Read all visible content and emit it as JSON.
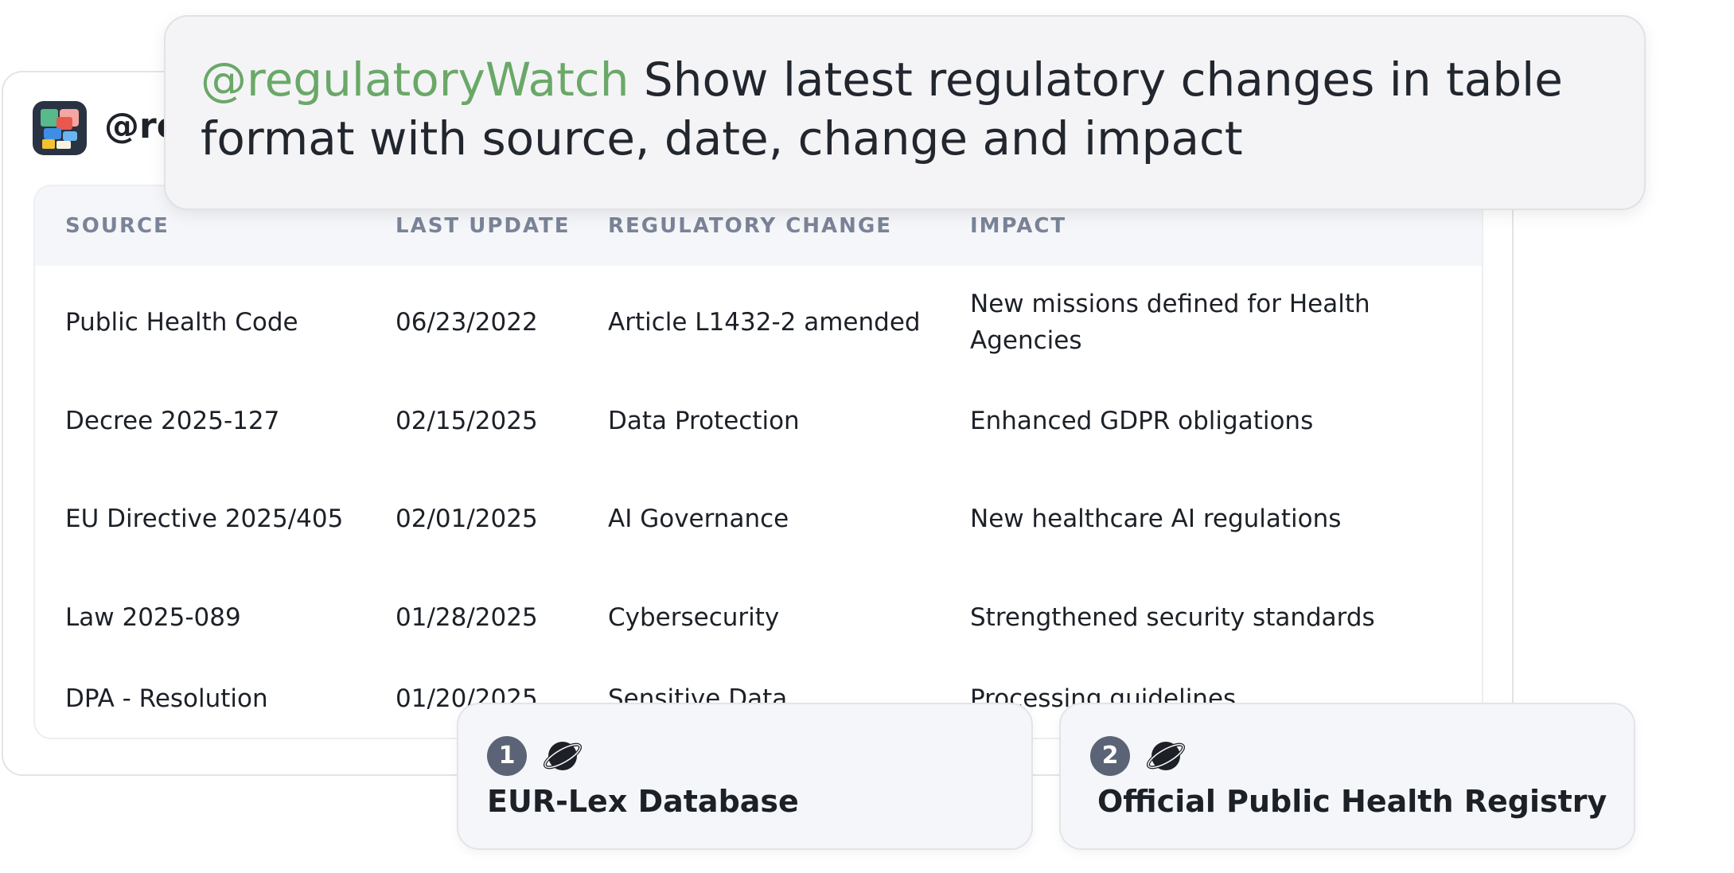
{
  "prompt": {
    "mention": "@regulatoryWatch",
    "text": " Show latest regulatory changes in table format with source, date, change and impact"
  },
  "card": {
    "handle": "@regulatoryWatch"
  },
  "table": {
    "headers": {
      "source": "SOURCE",
      "last_update": "LAST UPDATE",
      "regulatory_change": "REGULATORY CHANGE",
      "impact": "IMPACT"
    },
    "rows": [
      {
        "source": "Public Health Code",
        "date": "06/23/2022",
        "change": "Article L1432-2 amended",
        "impact": "New missions defined for Health Agencies"
      },
      {
        "source": "Decree 2025-127",
        "date": "02/15/2025",
        "change": "Data Protection",
        "impact": "Enhanced GDPR obligations"
      },
      {
        "source": "EU Directive 2025/405",
        "date": "02/01/2025",
        "change": "AI Governance",
        "impact": "New healthcare AI regulations"
      },
      {
        "source": "Law 2025-089",
        "date": "01/28/2025",
        "change": "Cybersecurity",
        "impact": "Strengthened security standards"
      },
      {
        "source": "DPA - Resolution",
        "date": "01/20/2025",
        "change": "Sensitive Data",
        "impact": "Processing guidelines"
      }
    ]
  },
  "sources": [
    {
      "number": "1",
      "icon": "globe-icon",
      "title": "EUR-Lex Database"
    },
    {
      "number": "2",
      "icon": "globe-icon",
      "title": "Official Public Health Registry"
    }
  ],
  "colors": {
    "mention": "#6aa868",
    "header_text": "#7a8498",
    "badge": "#5b6476"
  }
}
